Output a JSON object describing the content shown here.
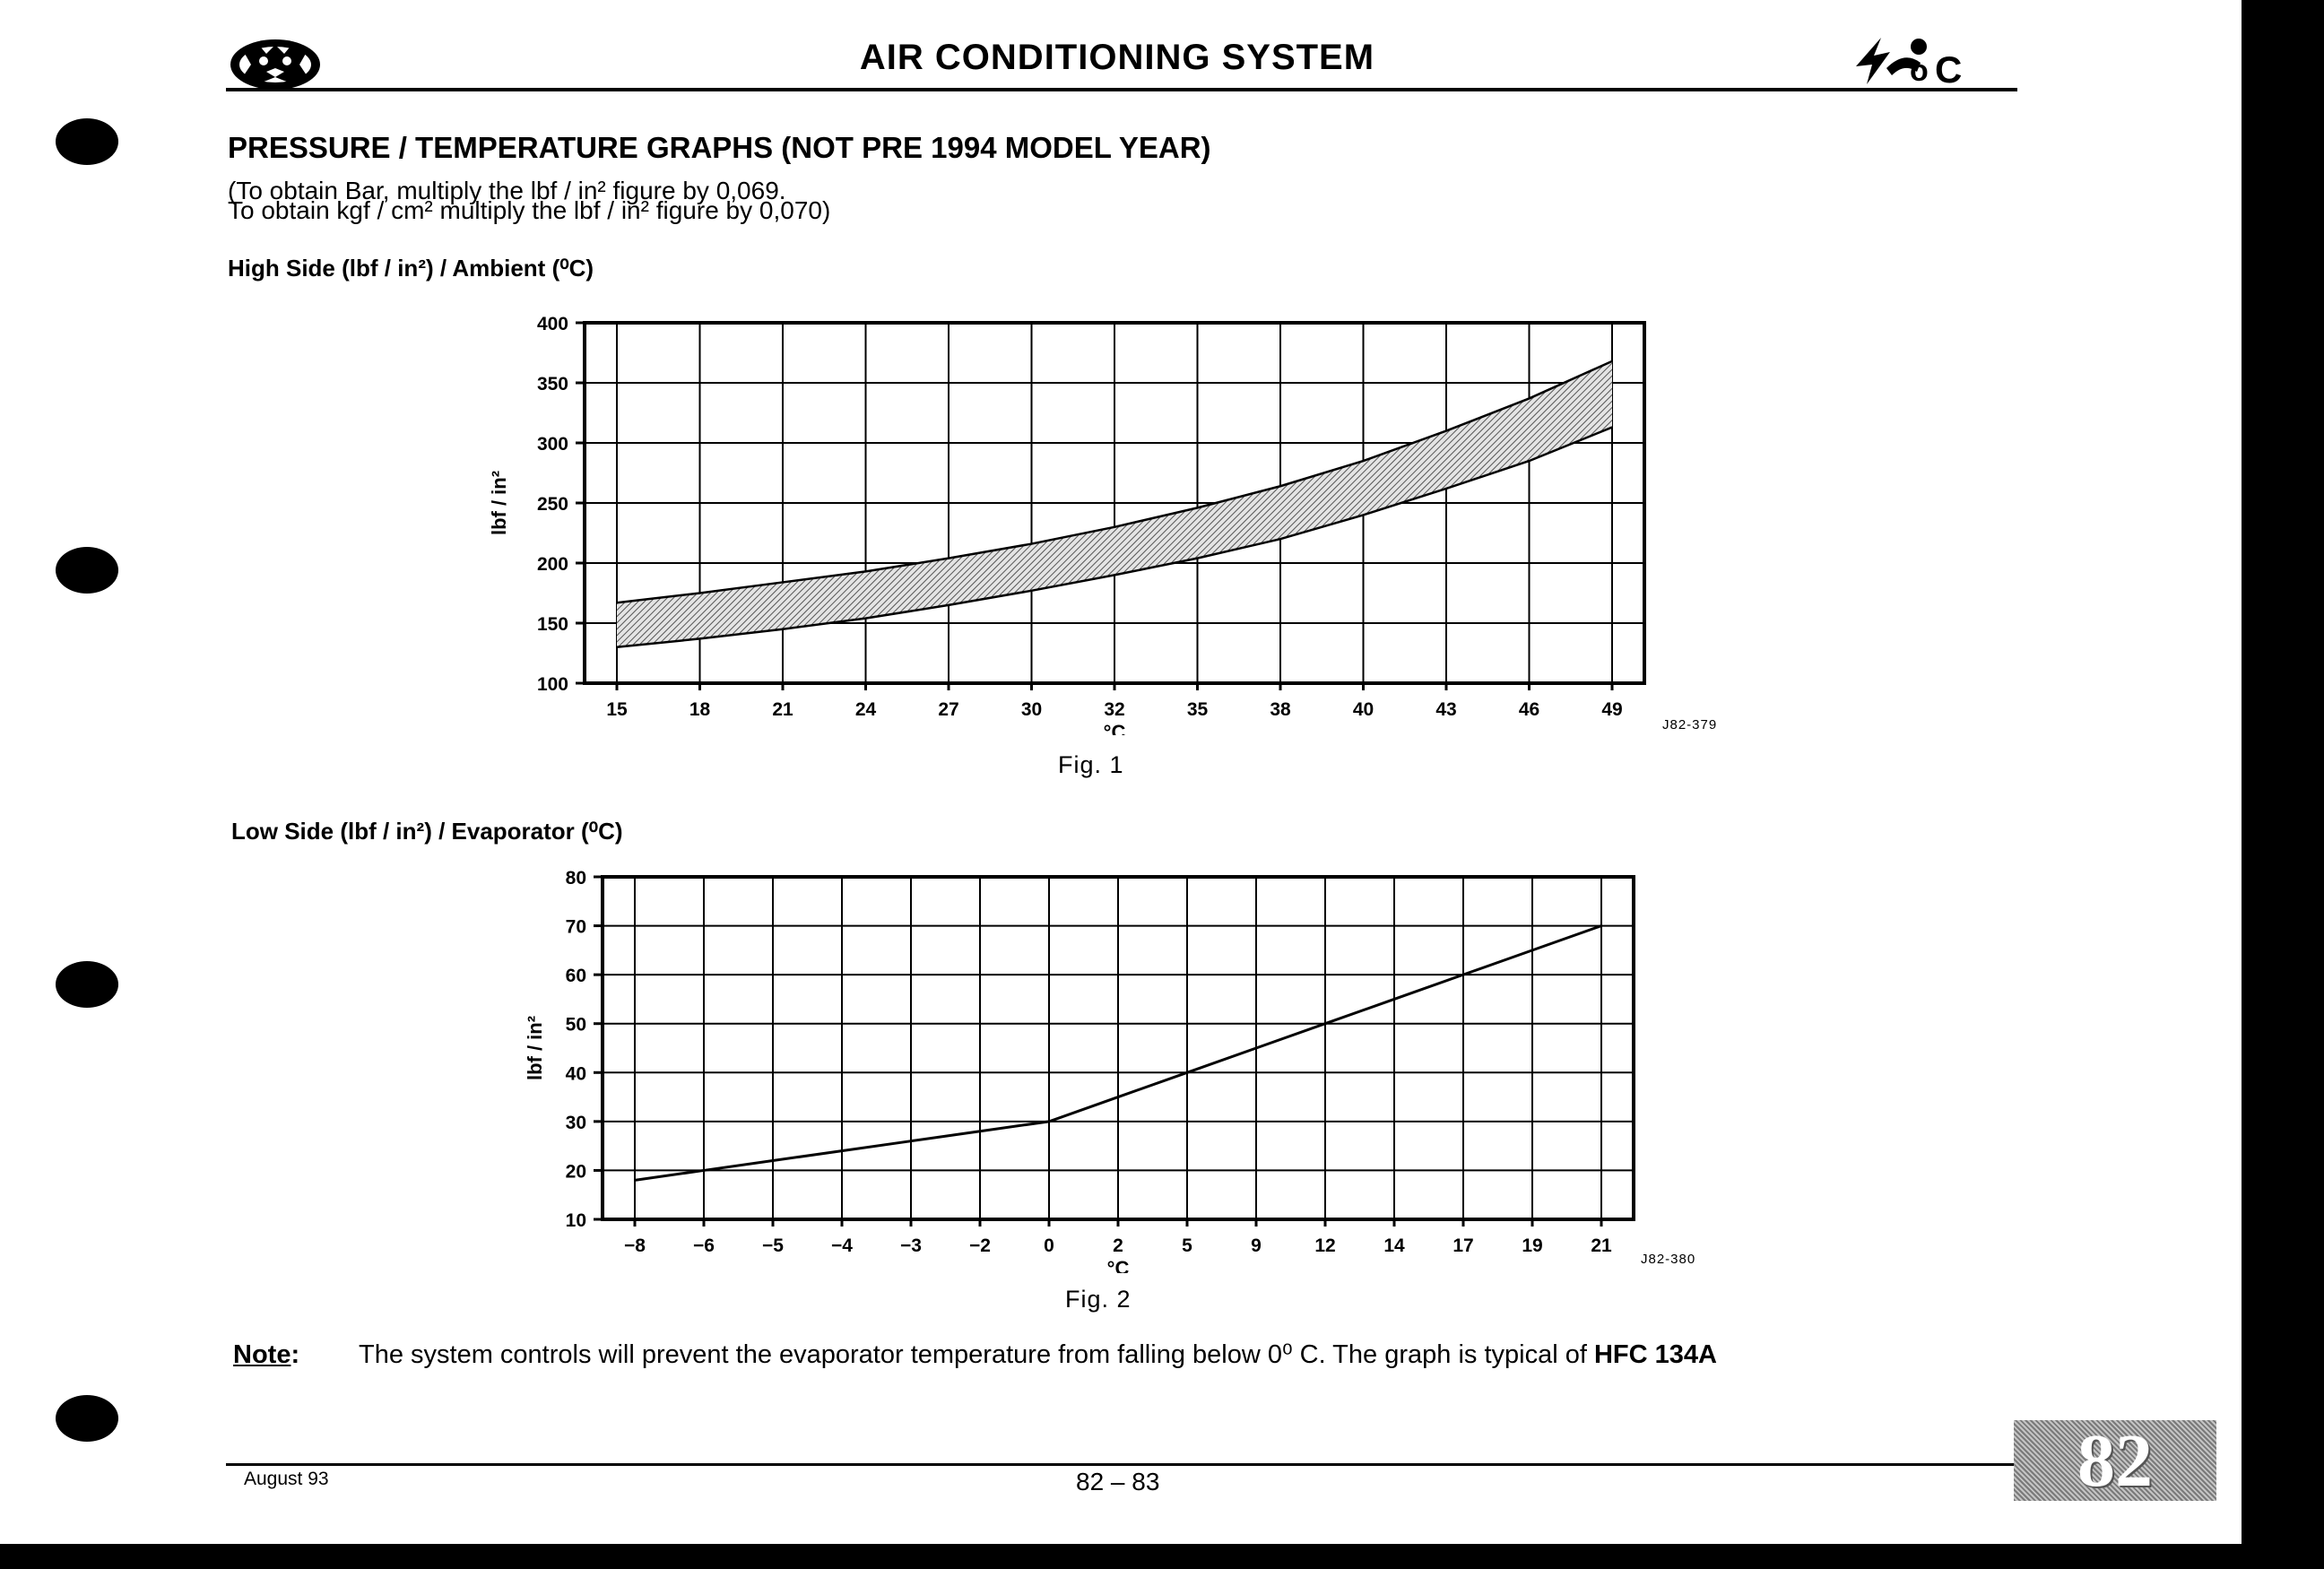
{
  "header": {
    "title": "AIR CONDITIONING SYSTEM",
    "left_logo_icon": "jaguar-head-emblem-icon",
    "right_logo_icon": "air-conditioning-symbol-icon",
    "right_logo_text": "C"
  },
  "section_title": "PRESSURE / TEMPERATURE GRAPHS (NOT PRE 1994 MODEL YEAR)",
  "conversion_notes": [
    "(To obtain Bar, multiply the lbf / in² figure by 0,069.",
    "To obtain kgf / cm² multiply the lbf / in² figure by 0,070)"
  ],
  "fig1": {
    "subheading": "High Side (lbf / in²) / Ambient (⁰C)",
    "caption": "Fig. 1",
    "code": "J82-379"
  },
  "fig2": {
    "subheading": "Low Side (lbf / in²) /  Evaporator  (⁰C)",
    "caption": "Fig. 2",
    "code": "J82-380"
  },
  "chart_data": [
    {
      "type": "area",
      "xlabel": "°C",
      "ylabel": "lbf / in²",
      "categories": [
        "15",
        "18",
        "21",
        "24",
        "27",
        "30",
        "32",
        "35",
        "38",
        "40",
        "43",
        "46",
        "49"
      ],
      "ylim": [
        100,
        400
      ],
      "yticks": [
        100,
        150,
        200,
        250,
        300,
        350,
        400
      ],
      "grid": true,
      "series": [
        {
          "values": [
            130,
            137,
            145,
            154,
            165,
            177,
            190,
            204,
            220,
            240,
            262,
            285,
            313
          ]
        },
        {
          "values": [
            167,
            175,
            184,
            193,
            204,
            216,
            230,
            246,
            264,
            285,
            310,
            337,
            368
          ]
        }
      ]
    },
    {
      "type": "line",
      "xlabel": "°C",
      "ylabel": "lbf / in²",
      "categories": [
        "−8",
        "−6",
        "−5",
        "−4",
        "−3",
        "−2",
        "0",
        "2",
        "5",
        "9",
        "12",
        "14",
        "17",
        "19",
        "21"
      ],
      "ylim": [
        10,
        80
      ],
      "yticks": [
        10,
        20,
        30,
        40,
        50,
        60,
        70,
        80
      ],
      "grid": true,
      "series": [
        {
          "values": [
            18,
            20,
            22,
            24,
            26,
            28,
            30,
            35,
            40,
            45,
            50,
            55,
            60,
            65,
            70
          ]
        }
      ]
    }
  ],
  "note": {
    "label": "Note",
    "text": "The system controls will prevent the evaporator temperature from  falling below 0⁰ C.  The graph is typical of ",
    "bold_text": "HFC 134A"
  },
  "footer": {
    "date": "August 93",
    "page": "82 – 83",
    "section_tab": "82"
  }
}
